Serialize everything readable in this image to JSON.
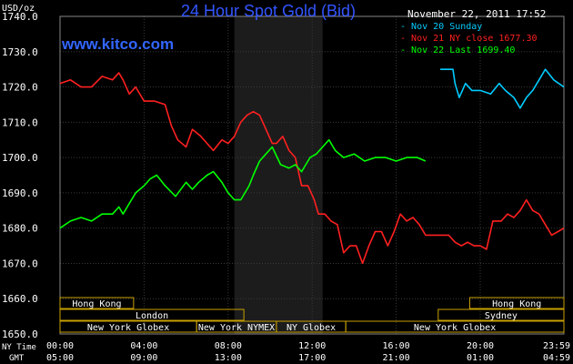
{
  "chart_data": {
    "type": "line",
    "title": "24 Hour Spot Gold (Bid)",
    "watermark": "www.kitco.com",
    "y_unit": "USD/oz",
    "timestamp": "November 22, 2011 17:52",
    "ylim": [
      1650,
      1740
    ],
    "y_ticks": [
      "1740.0",
      "1730.0",
      "1720.0",
      "1710.0",
      "1700.0",
      "1690.0",
      "1680.0",
      "1670.0",
      "1660.0",
      "1650.0"
    ],
    "x_row_labels": [
      "NY Time",
      "GMT"
    ],
    "x_ticks_ny": [
      "00:00",
      "04:00",
      "08:00",
      "12:00",
      "16:00",
      "20:00",
      "23:59"
    ],
    "x_ticks_gmt": [
      "05:00",
      "09:00",
      "13:00",
      "17:00",
      "21:00",
      "01:00",
      "04:59"
    ],
    "x_hours": [
      0,
      4,
      8,
      12,
      16,
      20,
      23.983
    ],
    "legend_placement": "top-right",
    "grid": true,
    "highlight_hours": [
      8.3,
      12.5
    ],
    "sessions": [
      {
        "label": "Hong Kong",
        "row": 0,
        "start": 0,
        "end": 3.5
      },
      {
        "label": "Hong Kong",
        "row": 0,
        "start": 19.5,
        "end": 23.983
      },
      {
        "label": "London",
        "row": 1,
        "start": 0,
        "end": 8.75
      },
      {
        "label": "Sydney",
        "row": 1,
        "start": 18,
        "end": 23.983
      },
      {
        "label": "New York Globex",
        "row": 2,
        "start": 0,
        "end": 6.5
      },
      {
        "label": "New York NYMEX",
        "row": 2,
        "start": 6.5,
        "end": 10.3
      },
      {
        "label": "NY Globex",
        "row": 2,
        "start": 10.3,
        "end": 13.6
      },
      {
        "label": "New York Globex",
        "row": 2,
        "start": 13.6,
        "end": 23.983
      }
    ],
    "series": [
      {
        "name": "Nov 20 Sunday",
        "color": "#00ccff",
        "x": [
          18.1,
          18.7,
          18.8,
          19.0,
          19.3,
          19.6,
          20.0,
          20.5,
          20.9,
          21.2,
          21.6,
          21.9,
          22.2,
          22.5,
          22.8,
          23.1,
          23.5,
          23.983
        ],
        "values": [
          1725,
          1725,
          1721,
          1717,
          1721,
          1719,
          1719,
          1718,
          1721,
          1719,
          1717,
          1714,
          1717,
          1719,
          1722,
          1725,
          1722,
          1720
        ]
      },
      {
        "name": "Nov 21 NY close 1677.30",
        "color": "#ff2020",
        "x": [
          0.0,
          0.5,
          1.0,
          1.5,
          2.0,
          2.5,
          2.8,
          3.0,
          3.3,
          3.6,
          4.0,
          4.5,
          5.0,
          5.3,
          5.6,
          6.0,
          6.3,
          6.7,
          7.0,
          7.3,
          7.7,
          8.0,
          8.3,
          8.6,
          8.9,
          9.2,
          9.5,
          9.8,
          10.1,
          10.3,
          10.6,
          10.9,
          11.2,
          11.5,
          11.8,
          12.1,
          12.3,
          12.6,
          12.9,
          13.2,
          13.5,
          13.8,
          14.1,
          14.4,
          14.7,
          15.0,
          15.3,
          15.6,
          15.9,
          16.2,
          16.5,
          16.8,
          17.1,
          17.4,
          17.8,
          18.1,
          18.5,
          18.8,
          19.1,
          19.4,
          19.7,
          20.0,
          20.3,
          20.6,
          21.0,
          21.3,
          21.6,
          21.9,
          22.2,
          22.5,
          22.8,
          23.1,
          23.4,
          23.7,
          23.983
        ],
        "values": [
          1721,
          1722,
          1720,
          1720,
          1723,
          1722,
          1724,
          1722,
          1718,
          1720,
          1716,
          1716,
          1715,
          1709,
          1705,
          1703,
          1708,
          1706,
          1704,
          1702,
          1705,
          1704,
          1706,
          1710,
          1712,
          1713,
          1712,
          1708,
          1704,
          1704,
          1706,
          1702,
          1700,
          1692,
          1692,
          1688,
          1684,
          1684,
          1682,
          1681,
          1673,
          1675,
          1675,
          1670,
          1675,
          1679,
          1679,
          1675,
          1679,
          1684,
          1682,
          1683,
          1681,
          1678,
          1678,
          1678,
          1678,
          1676,
          1675,
          1676,
          1675,
          1675,
          1674,
          1682,
          1682,
          1684,
          1683,
          1685,
          1688,
          1685,
          1684,
          1681,
          1678,
          1679,
          1680
        ]
      },
      {
        "name": "Nov 22 Last 1699.40",
        "color": "#00ff00",
        "x": [
          0.0,
          0.5,
          1.0,
          1.5,
          2.0,
          2.5,
          2.8,
          3.0,
          3.3,
          3.6,
          4.0,
          4.3,
          4.6,
          5.0,
          5.5,
          6.0,
          6.3,
          6.6,
          7.0,
          7.3,
          7.7,
          8.0,
          8.3,
          8.6,
          9.0,
          9.2,
          9.5,
          9.8,
          10.1,
          10.5,
          10.9,
          11.2,
          11.5,
          11.9,
          12.2,
          12.5,
          12.8,
          13.1,
          13.5,
          14.0,
          14.5,
          15.0,
          15.5,
          16.0,
          16.5,
          17.0,
          17.4
        ],
        "values": [
          1680,
          1682,
          1683,
          1682,
          1684,
          1684,
          1686,
          1684,
          1687,
          1690,
          1692,
          1694,
          1695,
          1692,
          1689,
          1693,
          1691,
          1693,
          1695,
          1696,
          1693,
          1690,
          1688,
          1688,
          1692,
          1695,
          1699,
          1701,
          1703,
          1698,
          1697,
          1698,
          1696,
          1700,
          1701,
          1703,
          1705,
          1702,
          1700,
          1701,
          1699,
          1700,
          1700,
          1699,
          1700,
          1700,
          1699
        ]
      }
    ]
  }
}
